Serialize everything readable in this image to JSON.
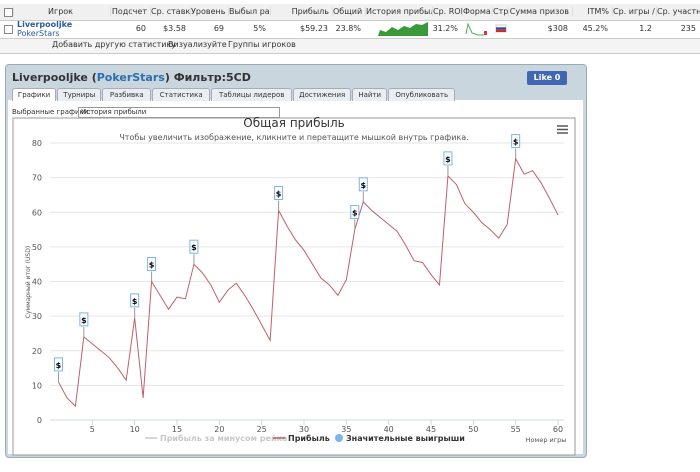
{
  "table": {
    "headers": [
      "Игрок",
      "Подсчет",
      "Ср. ставка",
      "Уровень",
      "Выбыл ран",
      "Прибыль",
      "Общий R",
      "История прибыл",
      "Ср. ROI",
      "Форма",
      "Стр",
      "Сумма призов",
      "ITM%",
      "Ср. игры /",
      "Ср. участн"
    ],
    "player": "Liverpooljke",
    "site": "PokerStars",
    "row": [
      "60",
      "$3.58",
      "69",
      "5%",
      "$59.23",
      "23.8%",
      "31.2%",
      "$308",
      "45.2%",
      "1.2",
      "235"
    ]
  },
  "toolbar": [
    "Добавить другую статистику",
    "Визуализуйте",
    "Группы игроков"
  ],
  "panel": {
    "player": "Liverpooljke",
    "site": "PokerStars",
    "filter": "Фильтр:5CD",
    "like": "Like 0",
    "tabs": [
      "Графики",
      "Турниры",
      "Разбивка",
      "Статистика",
      "Таблицы лидеров",
      "Достижения",
      "Найти",
      "Опубликовать"
    ],
    "selector_label": "Выбранные графики:",
    "selector_value": "История прибыли"
  },
  "chart_data": {
    "type": "line",
    "title": "Общая прибыль",
    "subtitle": "Чтобы увеличить изображение, кликните и перетащите мышкой внутрь графика.",
    "x_label": "Номер игры",
    "y_label": "Суммарный итог (USD)",
    "x": [
      1,
      2,
      3,
      4,
      5,
      6,
      7,
      8,
      9,
      10,
      11,
      12,
      13,
      14,
      15,
      16,
      17,
      18,
      19,
      20,
      21,
      22,
      23,
      24,
      25,
      26,
      27,
      28,
      29,
      30,
      31,
      32,
      33,
      34,
      35,
      36,
      37,
      38,
      39,
      40,
      41,
      42,
      43,
      44,
      45,
      46,
      47,
      48,
      49,
      50,
      51,
      52,
      53,
      54,
      55,
      56,
      57,
      58,
      59,
      60
    ],
    "series": [
      {
        "name": "Прибыль",
        "color": "#c0606a",
        "values": [
          11,
          6.4,
          4,
          24,
          22,
          20,
          18,
          15,
          11.5,
          29.5,
          6.4,
          40,
          36,
          32,
          35.5,
          35,
          45,
          42.5,
          39,
          34,
          37.5,
          39.5,
          36,
          32,
          27.5,
          23,
          60.5,
          56,
          52,
          49,
          45,
          41,
          39,
          36,
          40.5,
          55,
          63,
          60.5,
          58.5,
          56.5,
          54.5,
          50.5,
          46,
          45.5,
          42,
          39,
          70.5,
          68,
          62.5,
          60,
          57,
          55,
          52.5,
          56.5,
          75.5,
          71,
          72,
          68.5,
          64,
          59.23
        ]
      }
    ],
    "hidden_series": {
      "name": "Прибыль за минусом рейка",
      "color": "#c8c8c8"
    },
    "big_wins": {
      "name": "Значительные выигрыши",
      "color": "#7cb5ec",
      "label": "$",
      "x": [
        1,
        4,
        10,
        12,
        17,
        27,
        36,
        37,
        47,
        55
      ]
    },
    "xlim": [
      0,
      60
    ],
    "ylim": [
      0,
      80
    ],
    "xticks": [
      5,
      10,
      15,
      20,
      25,
      30,
      35,
      40,
      45,
      50,
      55,
      60
    ],
    "yticks": [
      0,
      10,
      20,
      30,
      40,
      50,
      60,
      70,
      80
    ],
    "grid": true
  }
}
